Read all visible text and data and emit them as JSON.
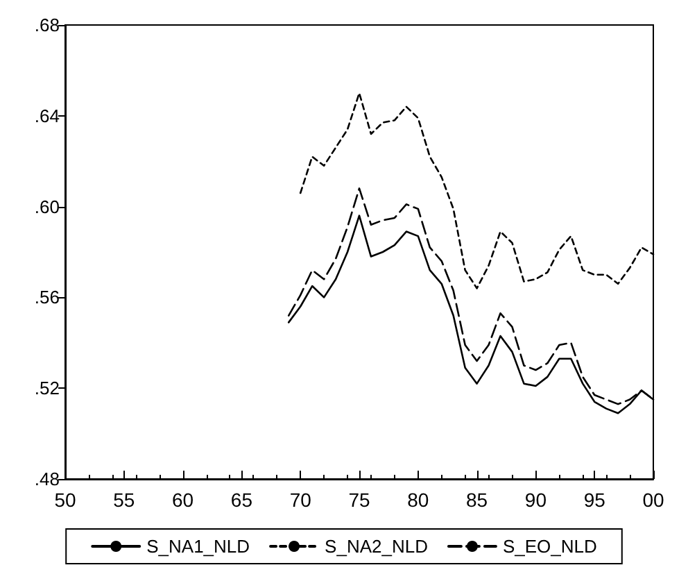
{
  "chart_data": {
    "type": "line",
    "x": [
      1969,
      1970,
      1971,
      1972,
      1973,
      1974,
      1975,
      1976,
      1977,
      1978,
      1979,
      1980,
      1981,
      1982,
      1983,
      1984,
      1985,
      1986,
      1987,
      1988,
      1989,
      1990,
      1991,
      1992,
      1993,
      1994,
      1995,
      1996,
      1997,
      1998,
      1999,
      2000
    ],
    "series": [
      {
        "name": "S_NA1_NLD",
        "color": "#000000",
        "line_style": "solid",
        "values": [
          0.549,
          0.556,
          0.565,
          0.56,
          0.568,
          0.58,
          0.596,
          0.578,
          0.58,
          0.583,
          0.589,
          0.587,
          0.572,
          0.566,
          0.552,
          0.529,
          0.522,
          0.53,
          0.543,
          0.536,
          0.522,
          0.521,
          0.525,
          0.533,
          0.533,
          0.522,
          0.514,
          0.511,
          0.509,
          0.513,
          0.519,
          0.515
        ]
      },
      {
        "name": "S_NA2_NLD",
        "color": "#000000",
        "line_style": "dotted",
        "values": [
          null,
          0.606,
          0.622,
          0.618,
          0.626,
          0.634,
          0.65,
          0.632,
          0.637,
          0.638,
          0.644,
          0.639,
          0.622,
          0.613,
          0.599,
          0.572,
          0.564,
          0.574,
          0.589,
          0.584,
          0.567,
          0.568,
          0.571,
          0.581,
          0.587,
          0.572,
          0.57,
          0.57,
          0.566,
          0.573,
          0.582,
          0.579
        ]
      },
      {
        "name": "S_EO_NLD",
        "color": "#000000",
        "line_style": "dashed",
        "values": [
          0.552,
          0.561,
          0.572,
          0.568,
          0.577,
          0.591,
          0.608,
          0.592,
          0.594,
          0.595,
          0.601,
          0.599,
          0.582,
          0.576,
          0.563,
          0.539,
          0.532,
          0.539,
          0.553,
          0.547,
          0.53,
          0.528,
          0.531,
          0.539,
          0.54,
          0.525,
          0.517,
          0.515,
          0.513,
          0.515,
          0.519,
          0.515
        ]
      }
    ],
    "xlim": [
      1950,
      2000
    ],
    "xticks": [
      {
        "value": 1950,
        "label": "50"
      },
      {
        "value": 1955,
        "label": "55"
      },
      {
        "value": 1960,
        "label": "60"
      },
      {
        "value": 1965,
        "label": "65"
      },
      {
        "value": 1970,
        "label": "70"
      },
      {
        "value": 1975,
        "label": "75"
      },
      {
        "value": 1980,
        "label": "80"
      },
      {
        "value": 1985,
        "label": "85"
      },
      {
        "value": 1990,
        "label": "90"
      },
      {
        "value": 1995,
        "label": "95"
      },
      {
        "value": 2000,
        "label": "00"
      }
    ],
    "ylim": [
      0.48,
      0.68
    ],
    "yticks": [
      {
        "value": 0.48,
        "label": ".48"
      },
      {
        "value": 0.52,
        "label": ".52"
      },
      {
        "value": 0.56,
        "label": ".56"
      },
      {
        "value": 0.6,
        "label": ".60"
      },
      {
        "value": 0.64,
        "label": ".64"
      },
      {
        "value": 0.68,
        "label": ".68"
      }
    ],
    "grid": false,
    "legend": "bottom",
    "marker": "none"
  }
}
